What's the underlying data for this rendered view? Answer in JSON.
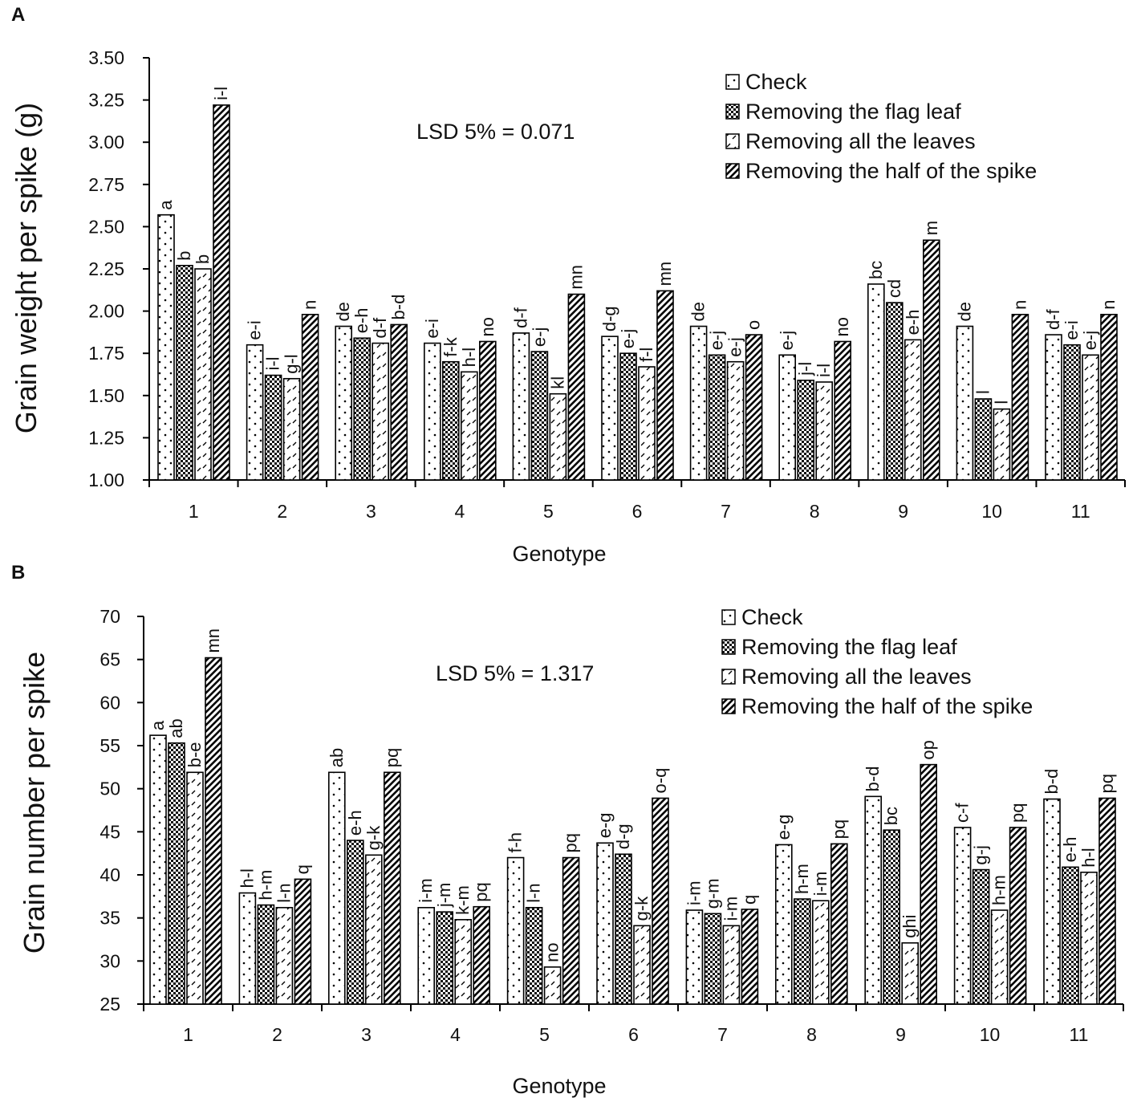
{
  "chart_data": [
    {
      "panel": "A",
      "type": "bar",
      "ylabel": "Grain weight per spike (g)",
      "xlabel": "Genotype",
      "ylim": [
        1.0,
        3.5
      ],
      "yticks": [
        "1.00",
        "1.25",
        "1.50",
        "1.75",
        "2.00",
        "2.25",
        "2.50",
        "2.75",
        "3.00",
        "3.25",
        "3.50"
      ],
      "categories": [
        "1",
        "2",
        "3",
        "4",
        "5",
        "6",
        "7",
        "8",
        "9",
        "10",
        "11"
      ],
      "annotation": "LSD 5% = 0.071",
      "series": [
        {
          "name": "Check",
          "pattern": "dots",
          "values": [
            2.57,
            1.8,
            1.91,
            1.81,
            1.87,
            1.85,
            1.91,
            1.74,
            2.16,
            1.91,
            1.86
          ],
          "labels": [
            "a",
            "e-i",
            "de",
            "e-i",
            "d-f",
            "d-g",
            "de",
            "e-j",
            "bc",
            "de",
            "d-f"
          ]
        },
        {
          "name": "Removing the flag leaf",
          "pattern": "checker",
          "values": [
            2.27,
            1.62,
            1.84,
            1.7,
            1.76,
            1.75,
            1.74,
            1.59,
            2.05,
            1.48,
            1.8
          ],
          "labels": [
            "b",
            "i-l",
            "e-h",
            "f-k",
            "e-j",
            "e-j",
            "e-j",
            "j-l",
            "cd",
            "l",
            "e-i"
          ]
        },
        {
          "name": "Removing all the leaves",
          "pattern": "dashes",
          "values": [
            2.25,
            1.6,
            1.81,
            1.64,
            1.51,
            1.67,
            1.7,
            1.58,
            1.83,
            1.42,
            1.74
          ],
          "labels": [
            "b",
            "g-l",
            "d-f",
            "h-l",
            "kl",
            "f-l",
            "e-j",
            "i-l",
            "e-h",
            "l",
            "e-j"
          ]
        },
        {
          "name": "Removing the half of the spike",
          "pattern": "stripes",
          "values": [
            3.22,
            1.98,
            1.92,
            1.82,
            2.1,
            2.12,
            1.86,
            1.82,
            2.42,
            1.98,
            1.98
          ],
          "labels": [
            "i-l",
            "n",
            "b-d",
            "no",
            "mn",
            "mn",
            "o",
            "no",
            "m",
            "n",
            "n"
          ]
        }
      ]
    },
    {
      "panel": "B",
      "type": "bar",
      "ylabel": "Grain number per spike",
      "xlabel": "Genotype",
      "ylim": [
        25,
        70
      ],
      "yticks": [
        "25",
        "30",
        "35",
        "40",
        "45",
        "50",
        "55",
        "60",
        "65",
        "70"
      ],
      "categories": [
        "1",
        "2",
        "3",
        "4",
        "5",
        "6",
        "7",
        "8",
        "9",
        "10",
        "11"
      ],
      "annotation": "LSD 5% = 1.317",
      "series": [
        {
          "name": "Check",
          "pattern": "dots",
          "values": [
            56.2,
            37.9,
            51.9,
            36.2,
            42.0,
            43.7,
            35.9,
            43.5,
            49.1,
            45.5,
            48.8
          ],
          "labels": [
            "a",
            "h-l",
            "ab",
            "i-m",
            "f-h",
            "e-g",
            "i-m",
            "e-g",
            "b-d",
            "c-f",
            "b-d"
          ]
        },
        {
          "name": "Removing the flag leaf",
          "pattern": "checker",
          "values": [
            55.3,
            36.5,
            44.0,
            35.7,
            36.2,
            42.4,
            35.5,
            37.2,
            45.2,
            40.6,
            40.9
          ],
          "labels": [
            "ab",
            "h-m",
            "e-h",
            "j-m",
            "l-n",
            "d-g",
            "g-m",
            "h-m",
            "bc",
            "g-j",
            "e-h"
          ]
        },
        {
          "name": "Removing all the leaves",
          "pattern": "dashes",
          "values": [
            51.9,
            36.2,
            42.3,
            34.8,
            29.3,
            34.1,
            34.1,
            37.0,
            32.1,
            35.9,
            40.3
          ],
          "labels": [
            "b-e",
            "l-n",
            "g-k",
            "k-m",
            "no",
            "g-k",
            "i-m",
            "i-m",
            "ghi",
            "h-m",
            "h-l"
          ]
        },
        {
          "name": "Removing the half of the spike",
          "pattern": "stripes",
          "values": [
            65.2,
            39.5,
            51.9,
            36.3,
            42.0,
            48.9,
            36.0,
            43.6,
            52.8,
            45.5,
            48.9
          ],
          "labels": [
            "mn",
            "q",
            "pq",
            "pq",
            "pq",
            "o-q",
            "q",
            "pq",
            "op",
            "pq",
            "pq"
          ]
        }
      ]
    }
  ]
}
